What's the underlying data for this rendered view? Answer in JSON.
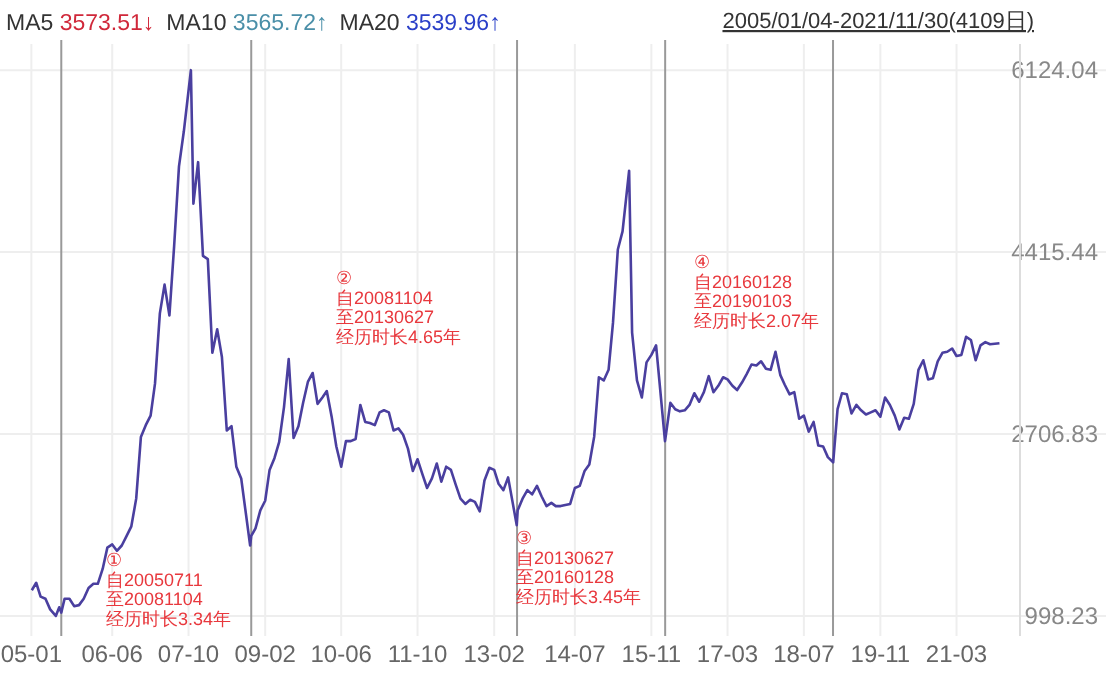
{
  "chart_data": {
    "type": "line",
    "grid": true,
    "marker": "none",
    "line_style": "solid",
    "annotations": [
      "MA5 3573.51↓",
      "MA10 3565.72↑",
      "MA20 3539.96↑",
      "2005/01/04-2021/11/30(4109日)",
      "①\n自20050711\n至20081104\n经历时长3.34年",
      "②\n自20081104\n至20130627\n经历时长4.65年",
      "③\n自20130627\n至20160128\n经历时长3.45年",
      "④\n自20160128\n至20190103\n经历时长2.07年"
    ],
    "xlim": [
      "2004-06-15",
      "2022-04-10"
    ],
    "xticks": [
      {
        "value": "2005-01",
        "label": "05-01"
      },
      {
        "value": "2006-06",
        "label": "06-06"
      },
      {
        "value": "2007-10",
        "label": "07-10"
      },
      {
        "value": "2009-02",
        "label": "09-02"
      },
      {
        "value": "2010-06",
        "label": "10-06"
      },
      {
        "value": "2011-10",
        "label": "11-10"
      },
      {
        "value": "2013-02",
        "label": "13-02"
      },
      {
        "value": "2014-07",
        "label": "14-07"
      },
      {
        "value": "2015-11",
        "label": "15-11"
      },
      {
        "value": "2017-03",
        "label": "17-03"
      },
      {
        "value": "2018-07",
        "label": "18-07"
      },
      {
        "value": "2019-11",
        "label": "19-11"
      },
      {
        "value": "2021-03",
        "label": "21-03"
      }
    ],
    "ylim": [
      810,
      6370
    ],
    "yticks": [
      998.23,
      2706.83,
      4415.44,
      6124.04
    ],
    "ref_lines": [
      {
        "axis": "x",
        "value": "2005-07-11",
        "color": "#999999"
      },
      {
        "axis": "x",
        "value": "2008-11-04",
        "color": "#999999"
      },
      {
        "axis": "x",
        "value": "2013-06-27",
        "color": "#999999"
      },
      {
        "axis": "x",
        "value": "2016-01-28",
        "color": "#999999"
      },
      {
        "axis": "x",
        "value": "2019-01-03",
        "color": "#999999"
      }
    ],
    "series": [
      {
        "color": "#4a3f9f",
        "x": [
          "2005-01-04",
          "2005-02",
          "2005-03",
          "2005-04",
          "2005-05",
          "2005-06-06",
          "2005-06-28",
          "2005-07-11",
          "2005-08",
          "2005-09",
          "2005-10",
          "2005-11",
          "2005-12",
          "2006-01",
          "2006-02",
          "2006-03",
          "2006-04",
          "2006-05",
          "2006-06",
          "2006-07",
          "2006-08",
          "2006-09",
          "2006-10",
          "2006-11",
          "2006-12",
          "2007-01",
          "2007-02",
          "2007-03",
          "2007-04",
          "2007-05",
          "2007-06",
          "2007-07",
          "2007-08",
          "2007-09",
          "2007-10-16",
          "2007-11",
          "2007-12",
          "2008-01",
          "2008-02",
          "2008-03",
          "2008-04",
          "2008-05",
          "2008-06",
          "2008-07",
          "2008-08",
          "2008-09",
          "2008-10-28",
          "2008-11-04",
          "2008-12",
          "2009-01",
          "2009-02",
          "2009-03",
          "2009-04",
          "2009-05",
          "2009-06",
          "2009-07",
          "2009-08",
          "2009-09",
          "2009-10",
          "2009-11",
          "2009-12",
          "2010-01",
          "2010-02",
          "2010-03",
          "2010-04",
          "2010-05",
          "2010-06",
          "2010-07",
          "2010-08",
          "2010-09",
          "2010-10",
          "2010-11",
          "2010-12",
          "2011-01",
          "2011-02",
          "2011-03",
          "2011-04",
          "2011-05",
          "2011-06",
          "2011-07",
          "2011-08",
          "2011-09",
          "2011-10",
          "2011-11",
          "2011-12",
          "2012-01",
          "2012-02",
          "2012-03",
          "2012-04",
          "2012-05",
          "2012-06",
          "2012-07",
          "2012-08",
          "2012-09",
          "2012-10",
          "2012-11",
          "2012-12",
          "2013-01",
          "2013-02",
          "2013-03",
          "2013-04",
          "2013-05",
          "2013-06-25",
          "2013-07",
          "2013-08",
          "2013-09",
          "2013-10",
          "2013-11",
          "2013-12",
          "2014-01",
          "2014-02",
          "2014-03",
          "2014-04",
          "2014-05",
          "2014-06",
          "2014-07",
          "2014-08",
          "2014-09",
          "2014-10",
          "2014-11",
          "2014-12",
          "2015-01",
          "2015-02",
          "2015-03",
          "2015-04",
          "2015-05",
          "2015-06-12",
          "2015-07",
          "2015-08",
          "2015-09",
          "2015-10",
          "2015-11",
          "2015-12",
          "2016-01-27",
          "2016-02",
          "2016-03",
          "2016-04",
          "2016-05",
          "2016-06",
          "2016-07",
          "2016-08",
          "2016-09",
          "2016-10",
          "2016-11",
          "2016-12",
          "2017-01",
          "2017-02",
          "2017-03",
          "2017-04",
          "2017-05",
          "2017-06",
          "2017-07",
          "2017-08",
          "2017-09",
          "2017-10",
          "2017-11",
          "2017-12",
          "2018-01",
          "2018-02",
          "2018-03",
          "2018-04",
          "2018-05",
          "2018-06",
          "2018-07",
          "2018-08",
          "2018-09",
          "2018-10",
          "2018-11",
          "2018-12",
          "2019-01-04",
          "2019-02",
          "2019-03",
          "2019-04",
          "2019-05",
          "2019-06",
          "2019-07",
          "2019-08",
          "2019-09",
          "2019-10",
          "2019-11",
          "2019-12",
          "2020-01",
          "2020-02",
          "2020-03",
          "2020-04",
          "2020-05",
          "2020-06",
          "2020-07",
          "2020-08",
          "2020-09",
          "2020-10",
          "2020-11",
          "2020-12",
          "2021-01",
          "2021-02",
          "2021-03",
          "2021-04",
          "2021-05",
          "2021-06",
          "2021-07",
          "2021-08",
          "2021-09",
          "2021-10",
          "2021-11-30"
        ],
        "values": [
          1240,
          1310,
          1180,
          1160,
          1060,
          998.23,
          1080,
          1030,
          1160,
          1160,
          1090,
          1100,
          1160,
          1260,
          1300,
          1300,
          1440,
          1640,
          1670,
          1610,
          1660,
          1750,
          1840,
          2100,
          2680,
          2790,
          2880,
          3180,
          3840,
          4110,
          3820,
          4470,
          5220,
          5550,
          6124.04,
          4870,
          5260,
          4380,
          4350,
          3470,
          3690,
          3430,
          2740,
          2780,
          2400,
          2290,
          1660,
          1750,
          1820,
          1990,
          2080,
          2370,
          2480,
          2630,
          2960,
          3410,
          2670,
          2780,
          3000,
          3200,
          3280,
          2990,
          3050,
          3110,
          2870,
          2590,
          2400,
          2640,
          2640,
          2660,
          2980,
          2820,
          2810,
          2790,
          2910,
          2930,
          2910,
          2740,
          2760,
          2700,
          2570,
          2360,
          2470,
          2330,
          2200,
          2290,
          2430,
          2260,
          2400,
          2370,
          2230,
          2100,
          2050,
          2090,
          2070,
          1980,
          2270,
          2390,
          2370,
          2240,
          2180,
          2300,
          1850,
          1990,
          2100,
          2180,
          2140,
          2220,
          2120,
          2030,
          2060,
          2030,
          2030,
          2040,
          2050,
          2200,
          2220,
          2360,
          2420,
          2680,
          3240,
          3210,
          3310,
          3750,
          4440,
          4610,
          5180,
          3660,
          3210,
          3050,
          3380,
          3450,
          3540,
          2640,
          2690,
          3000,
          2940,
          2920,
          2930,
          2980,
          3090,
          3010,
          3100,
          3250,
          3100,
          3160,
          3240,
          3220,
          3160,
          3120,
          3190,
          3270,
          3360,
          3350,
          3390,
          3320,
          3310,
          3480,
          3260,
          3170,
          3080,
          3100,
          2850,
          2880,
          2730,
          2820,
          2600,
          2590,
          2490,
          2440,
          2940,
          3090,
          3080,
          2900,
          2980,
          2930,
          2890,
          2910,
          2930,
          2870,
          3050,
          2980,
          2880,
          2750,
          2860,
          2850,
          2990,
          3310,
          3400,
          3220,
          3230,
          3390,
          3470,
          3480,
          3510,
          3440,
          3450,
          3620,
          3590,
          3400,
          3540,
          3570,
          3550,
          3560
        ]
      }
    ]
  }
}
